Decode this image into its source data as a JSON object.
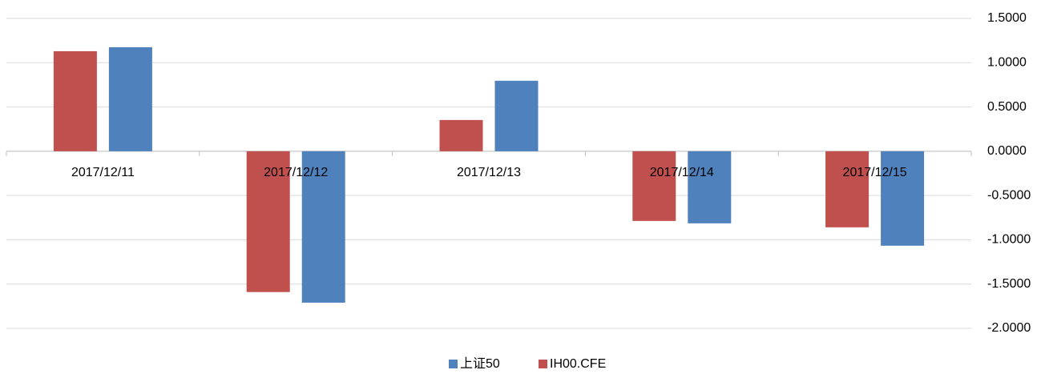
{
  "chart_data": {
    "type": "bar",
    "categories": [
      "2017/12/11",
      "2017/12/12",
      "2017/12/13",
      "2017/12/14",
      "2017/12/15"
    ],
    "series": [
      {
        "name": "IH00.CFE",
        "color": "#c0504d",
        "values": [
          1.13,
          -1.59,
          0.353,
          -0.787,
          -0.859
        ]
      },
      {
        "name": "上证50",
        "color": "#4f81bd",
        "values": [
          1.175,
          -1.71,
          0.796,
          -0.814,
          -1.067
        ]
      }
    ],
    "ylim": [
      -2,
      1.5
    ],
    "yticks": [
      {
        "value": 1.5,
        "label": "1.5000"
      },
      {
        "value": 1,
        "label": "1.0000"
      },
      {
        "value": 0.5,
        "label": "0.5000"
      },
      {
        "value": 0,
        "label": "0.0000"
      },
      {
        "value": -0.5,
        "label": "-0.5000"
      },
      {
        "value": -1,
        "label": "-1.0000"
      },
      {
        "value": -1.5,
        "label": "-1.5000"
      },
      {
        "value": -2,
        "label": "-2.0000"
      }
    ],
    "grid": true
  }
}
